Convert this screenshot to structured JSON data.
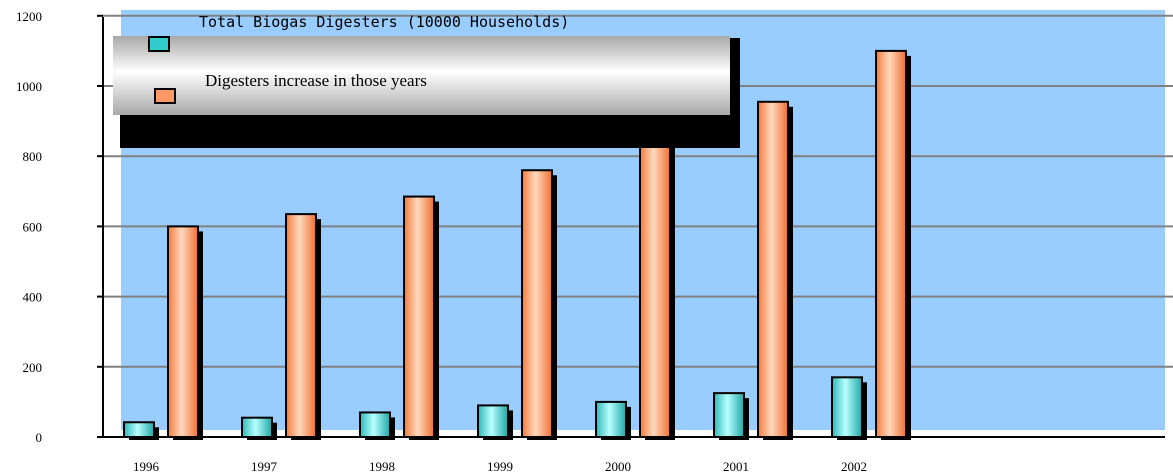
{
  "chart_data": {
    "type": "bar",
    "categories": [
      "1996",
      "1997",
      "1998",
      "1999",
      "2000",
      "2001",
      "2002"
    ],
    "series": [
      {
        "name": "Total Biogas Digesters (10000 Households)",
        "values": [
          42,
          55,
          70,
          90,
          100,
          125,
          170
        ]
      },
      {
        "name": "Digesters increase in those years",
        "values": [
          600,
          635,
          685,
          760,
          850,
          955,
          1100
        ]
      }
    ],
    "ylim": [
      0,
      1200
    ],
    "yticks": [
      0,
      200,
      400,
      600,
      800,
      1000,
      1200
    ],
    "grid": true,
    "legend_position": "top-left",
    "colors": {
      "plot_bg": "#99ccff",
      "series1": "#33cccc",
      "series2": "#ff9966",
      "grid": "#808080",
      "shadow": "#000000"
    }
  }
}
